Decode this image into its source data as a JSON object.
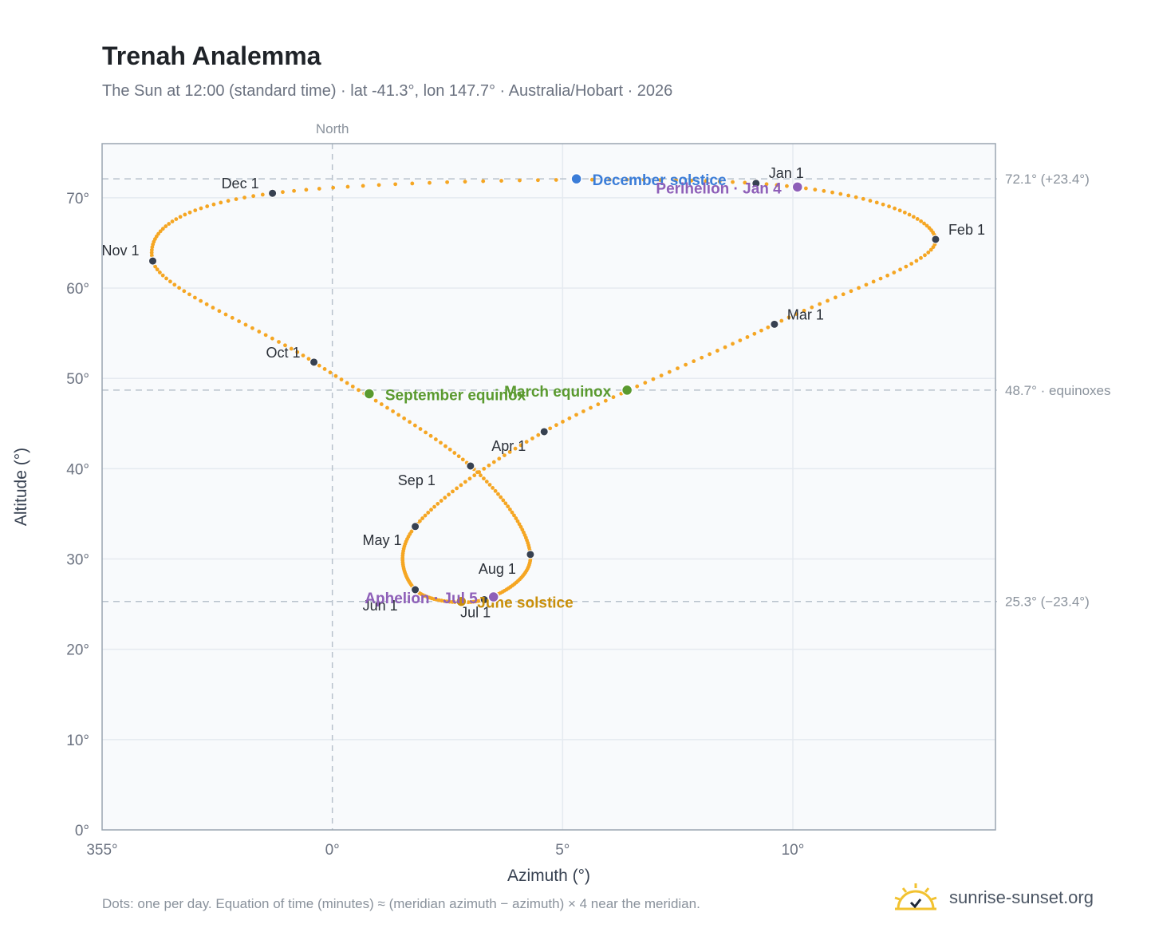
{
  "title": "Trenah Analemma",
  "subtitle": "The Sun at 12:00 (standard time) · lat -41.3°, lon 147.7° · Australia/Hobart · 2026",
  "footnote": "Dots: one per day. Equation of time (minutes) ≈ (meridian azimuth − azimuth) × 4 near the meridian.",
  "brand": {
    "label": "sunrise-sunset.org",
    "icon": "sunrise-logo-icon"
  },
  "colors": {
    "path": "#f5a623",
    "month_marker": "#374151",
    "solstice_december": "#3b7dd8",
    "solstice_june": "#c98f0a",
    "equinox": "#5a9a2f",
    "apsis": "#8e5fb8",
    "plot_bg": "#f8fafc",
    "grid": "#e5eaf0",
    "reference_line": "#b8c2cc"
  },
  "chart_data": {
    "type": "scatter",
    "title": "Trenah Analemma",
    "xlabel": "Azimuth (°)",
    "ylabel": "Altitude (°)",
    "xlim": [
      355,
      14.4
    ],
    "ylim": [
      0,
      76
    ],
    "grid": true,
    "x_ticks": [
      "355°",
      "0°",
      "5°",
      "10°"
    ],
    "y_ticks": [
      "0°",
      "10°",
      "20°",
      "30°",
      "40°",
      "50°",
      "60°",
      "70°"
    ],
    "north_label": "North",
    "north_azimuth": 0,
    "reference_lines": [
      {
        "altitude": 72.1,
        "label": "72.1° (+23.4°)"
      },
      {
        "altitude": 48.7,
        "label": "48.7° · equinoxes"
      },
      {
        "altitude": 25.3,
        "label": "25.3° (−23.4°)"
      }
    ],
    "month_markers": [
      {
        "label": "Jan 1",
        "azimuth": 9.2,
        "altitude": 71.6
      },
      {
        "label": "Feb 1",
        "azimuth": 13.1,
        "altitude": 65.4
      },
      {
        "label": "Mar 1",
        "azimuth": 9.6,
        "altitude": 56.0
      },
      {
        "label": "Apr 1",
        "azimuth": 4.6,
        "altitude": 44.1
      },
      {
        "label": "May 1",
        "azimuth": 1.8,
        "altitude": 33.6
      },
      {
        "label": "Jun 1",
        "azimuth": 1.8,
        "altitude": 26.6
      },
      {
        "label": "Jul 1",
        "azimuth": 3.3,
        "altitude": 25.5
      },
      {
        "label": "Aug 1",
        "azimuth": 4.3,
        "altitude": 30.5
      },
      {
        "label": "Sep 1",
        "azimuth": 3.0,
        "altitude": 40.3
      },
      {
        "label": "Oct 1",
        "azimuth": -0.4,
        "altitude": 51.8
      },
      {
        "label": "Nov 1",
        "azimuth": -3.9,
        "altitude": 63.0
      },
      {
        "label": "Dec 1",
        "azimuth": -1.3,
        "altitude": 70.5
      }
    ],
    "events": [
      {
        "label": "December solstice",
        "azimuth": 5.3,
        "altitude": 72.1,
        "kind": "solstice_december"
      },
      {
        "label": "Perihelion · Jan 4",
        "azimuth": 10.1,
        "altitude": 71.2,
        "kind": "apsis"
      },
      {
        "label": "March equinox",
        "azimuth": 6.4,
        "altitude": 48.7,
        "kind": "equinox"
      },
      {
        "label": "September equinox",
        "azimuth": 0.8,
        "altitude": 48.3,
        "kind": "equinox"
      },
      {
        "label": "June solstice",
        "azimuth": 2.8,
        "altitude": 25.3,
        "kind": "solstice_june"
      },
      {
        "label": "Aphelion · Jul 5",
        "azimuth": 3.5,
        "altitude": 25.8,
        "kind": "apsis"
      }
    ]
  }
}
